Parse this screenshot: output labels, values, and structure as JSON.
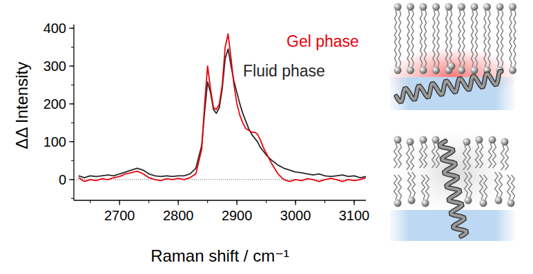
{
  "chart_data": {
    "type": "line",
    "x_label": "Raman shift / cm⁻¹",
    "y_label": "ΔΔ Intensity",
    "x": [
      2630,
      2640,
      2650,
      2660,
      2670,
      2680,
      2690,
      2700,
      2710,
      2720,
      2730,
      2740,
      2750,
      2760,
      2770,
      2780,
      2790,
      2800,
      2810,
      2820,
      2830,
      2840,
      2845,
      2850,
      2855,
      2860,
      2865,
      2870,
      2875,
      2880,
      2885,
      2890,
      2895,
      2900,
      2905,
      2910,
      2915,
      2920,
      2925,
      2930,
      2935,
      2940,
      2945,
      2950,
      2960,
      2970,
      2980,
      2990,
      3000,
      3010,
      3020,
      3030,
      3040,
      3050,
      3060,
      3070,
      3080,
      3090,
      3100,
      3110,
      3120
    ],
    "series": [
      {
        "name": "Gel phase",
        "color": "#e8000b",
        "values": [
          5,
          -5,
          0,
          -3,
          2,
          0,
          5,
          8,
          15,
          18,
          22,
          15,
          5,
          0,
          -3,
          2,
          0,
          3,
          0,
          5,
          15,
          80,
          200,
          300,
          240,
          190,
          185,
          200,
          250,
          350,
          385,
          320,
          250,
          200,
          170,
          150,
          135,
          130,
          125,
          125,
          120,
          105,
          85,
          70,
          40,
          15,
          0,
          -5,
          0,
          -3,
          2,
          0,
          -5,
          0,
          3,
          0,
          -5,
          0,
          -3,
          0,
          5
        ]
      },
      {
        "name": "Fluid phase",
        "color": "#262626",
        "values": [
          10,
          5,
          10,
          8,
          10,
          12,
          10,
          15,
          20,
          25,
          30,
          25,
          15,
          10,
          8,
          10,
          8,
          10,
          10,
          15,
          30,
          90,
          180,
          258,
          230,
          185,
          175,
          190,
          240,
          320,
          345,
          300,
          260,
          230,
          200,
          175,
          155,
          135,
          120,
          110,
          100,
          85,
          75,
          65,
          50,
          38,
          30,
          25,
          20,
          18,
          15,
          12,
          15,
          10,
          8,
          10,
          12,
          8,
          10,
          5,
          8
        ]
      }
    ],
    "xlim": [
      2622,
      3120
    ],
    "ylim": [
      -55,
      410
    ],
    "xticks": [
      2700,
      2800,
      2900,
      3000,
      3100
    ],
    "yticks": [
      0,
      100,
      200,
      300,
      400
    ],
    "legend": "top-right",
    "grid": false
  }
}
